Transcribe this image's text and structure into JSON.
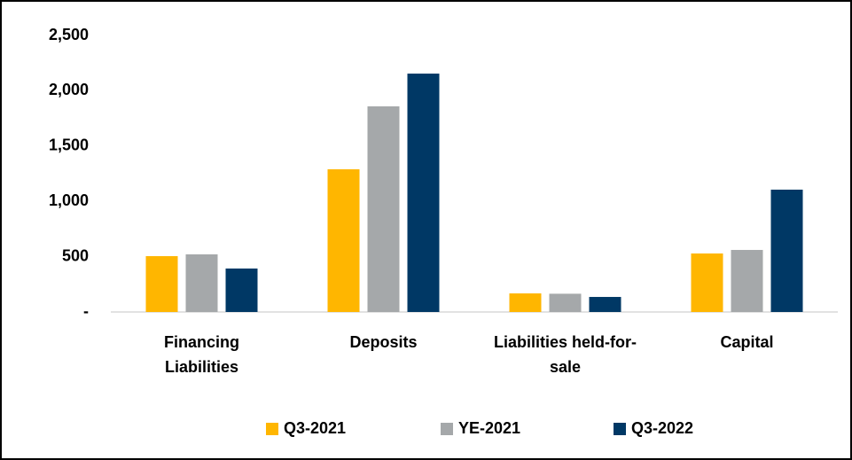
{
  "chart_data": {
    "type": "bar",
    "categories": [
      "Financing Liabilities",
      "Deposits",
      "Liabilities held-for-sale",
      "Capital"
    ],
    "series": [
      {
        "name": "Q3-2021",
        "color": "#ffb600",
        "values": [
          505,
          1290,
          168,
          529
        ]
      },
      {
        "name": "YE-2021",
        "color": "#a5a8aa",
        "values": [
          521,
          1859,
          165,
          561
        ]
      },
      {
        "name": "Q3-2022",
        "color": "#003865",
        "values": [
          393,
          2155,
          136,
          1106
        ]
      }
    ],
    "ylim": [
      0,
      2500
    ],
    "yticks": [
      {
        "value": 0,
        "label": "-"
      },
      500,
      {
        "value": 1000,
        "label": "1,000"
      },
      {
        "value": 1500,
        "label": "1,500"
      },
      {
        "value": 2000,
        "label": "2,000"
      },
      {
        "value": 2500,
        "label": "2,500"
      }
    ],
    "grid": false,
    "legend": "bottom"
  }
}
